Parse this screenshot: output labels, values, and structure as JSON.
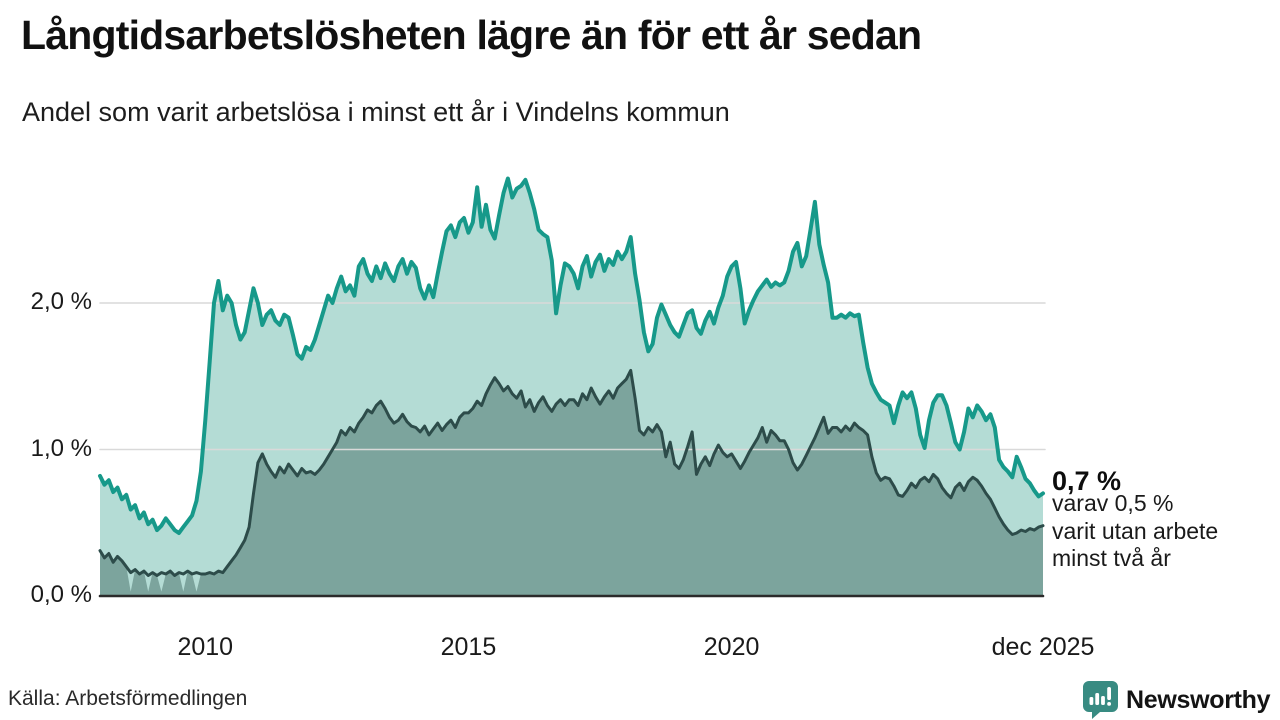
{
  "header": {
    "title": "Långtidsarbetslösheten lägre än för ett år sedan",
    "subtitle": "Andel som varit arbetslösa i minst ett år i Vindelns kommun"
  },
  "annotation": {
    "headline": "0,7 %",
    "line1": "varav 0,5 %",
    "line2": "varit utan arbete",
    "line3": "minst två år"
  },
  "footer": {
    "source": "Källa: Arbetsförmedlingen",
    "logo_text": "Newsworthy"
  },
  "colors": {
    "teal_line": "#17998a",
    "teal_fill": "#b4dcd5",
    "dark_line": "#2d4c4a",
    "dark_fill": "#7ca49d",
    "grid": "#d9d9d9",
    "axis": "#2b2b2b",
    "logo_teal": "#388b82",
    "text": "#1a1a1a"
  },
  "chart_data": {
    "type": "area",
    "title": "Andel som varit arbetslösa i minst ett år i Vindelns kommun",
    "x_start": "2008-01",
    "x_end": "2025-12",
    "x_unit": "month",
    "ylim": [
      0,
      2.95
    ],
    "grid": true,
    "legend": "none (annotated at line end)",
    "y_ticks": [
      {
        "label": "2,0 %",
        "value": 2.0
      },
      {
        "label": "1,0 %",
        "value": 1.0
      },
      {
        "label": "0,0 %",
        "value": 0.0
      }
    ],
    "x_ticks": [
      {
        "label": "2010",
        "month_index": 24
      },
      {
        "label": "2015",
        "month_index": 84
      },
      {
        "label": "2020",
        "month_index": 144
      },
      {
        "label": "dec 2025",
        "month_index": 215
      }
    ],
    "series": [
      {
        "name": "arbetslösa minst ett år",
        "end_label": "0,7 %",
        "color": "#17998a",
        "fill": "#b4dcd5",
        "stroke_width": 4,
        "values": [
          0.82,
          0.76,
          0.79,
          0.71,
          0.74,
          0.66,
          0.69,
          0.59,
          0.62,
          0.53,
          0.57,
          0.49,
          0.52,
          0.45,
          0.48,
          0.53,
          0.49,
          0.45,
          0.43,
          0.47,
          0.51,
          0.55,
          0.65,
          0.85,
          1.2,
          1.6,
          2.0,
          2.15,
          1.95,
          2.05,
          2.0,
          1.85,
          1.75,
          1.8,
          1.95,
          2.1,
          2.0,
          1.85,
          1.92,
          1.95,
          1.88,
          1.85,
          1.92,
          1.9,
          1.78,
          1.65,
          1.62,
          1.7,
          1.68,
          1.75,
          1.85,
          1.95,
          2.05,
          2.0,
          2.1,
          2.18,
          2.08,
          2.12,
          2.05,
          2.25,
          2.3,
          2.2,
          2.15,
          2.25,
          2.17,
          2.27,
          2.2,
          2.15,
          2.25,
          2.3,
          2.2,
          2.28,
          2.24,
          2.1,
          2.03,
          2.12,
          2.04,
          2.2,
          2.35,
          2.49,
          2.53,
          2.45,
          2.55,
          2.58,
          2.48,
          2.55,
          2.79,
          2.52,
          2.67,
          2.5,
          2.44,
          2.6,
          2.75,
          2.85,
          2.72,
          2.78,
          2.8,
          2.84,
          2.75,
          2.64,
          2.5,
          2.47,
          2.45,
          2.29,
          1.93,
          2.12,
          2.27,
          2.25,
          2.2,
          2.1,
          2.25,
          2.32,
          2.18,
          2.28,
          2.33,
          2.22,
          2.3,
          2.26,
          2.35,
          2.3,
          2.35,
          2.45,
          2.2,
          2.02,
          1.8,
          1.67,
          1.72,
          1.9,
          1.99,
          1.92,
          1.85,
          1.8,
          1.77,
          1.85,
          1.93,
          1.95,
          1.83,
          1.79,
          1.88,
          1.94,
          1.86,
          1.97,
          2.05,
          2.18,
          2.25,
          2.28,
          2.1,
          1.86,
          1.95,
          2.02,
          2.08,
          2.12,
          2.16,
          2.11,
          2.14,
          2.12,
          2.14,
          2.22,
          2.35,
          2.41,
          2.25,
          2.32,
          2.5,
          2.69,
          2.4,
          2.26,
          2.14,
          1.9,
          1.9,
          1.92,
          1.9,
          1.93,
          1.91,
          1.92,
          1.73,
          1.56,
          1.45,
          1.39,
          1.34,
          1.32,
          1.3,
          1.18,
          1.3,
          1.39,
          1.35,
          1.39,
          1.28,
          1.1,
          1.01,
          1.2,
          1.32,
          1.37,
          1.37,
          1.3,
          1.18,
          1.05,
          1.0,
          1.12,
          1.28,
          1.22,
          1.3,
          1.26,
          1.2,
          1.24,
          1.15,
          0.93,
          0.88,
          0.85,
          0.81,
          0.95,
          0.88,
          0.8,
          0.77,
          0.72,
          0.68,
          0.7
        ]
      },
      {
        "name": "varav utan arbete minst två år",
        "end_label": "0,5 %",
        "color": "#2d4c4a",
        "fill": "#7ca49d",
        "stroke_width": 3,
        "fill_dips": [
          {
            "index": 7,
            "value": 0.03
          },
          {
            "index": 11,
            "value": 0.03
          },
          {
            "index": 14,
            "value": 0.03
          },
          {
            "index": 19,
            "value": 0.03
          },
          {
            "index": 22,
            "value": 0.03
          }
        ],
        "values": [
          0.31,
          0.26,
          0.29,
          0.23,
          0.27,
          0.24,
          0.2,
          0.16,
          0.18,
          0.15,
          0.17,
          0.14,
          0.16,
          0.14,
          0.16,
          0.15,
          0.17,
          0.14,
          0.16,
          0.15,
          0.17,
          0.15,
          0.16,
          0.15,
          0.15,
          0.16,
          0.15,
          0.17,
          0.16,
          0.2,
          0.24,
          0.28,
          0.33,
          0.38,
          0.47,
          0.7,
          0.91,
          0.97,
          0.9,
          0.85,
          0.81,
          0.88,
          0.84,
          0.9,
          0.86,
          0.82,
          0.87,
          0.84,
          0.85,
          0.83,
          0.86,
          0.9,
          0.95,
          1.0,
          1.05,
          1.13,
          1.1,
          1.15,
          1.12,
          1.18,
          1.22,
          1.27,
          1.25,
          1.3,
          1.33,
          1.28,
          1.22,
          1.18,
          1.2,
          1.24,
          1.19,
          1.16,
          1.15,
          1.12,
          1.16,
          1.1,
          1.14,
          1.18,
          1.13,
          1.17,
          1.2,
          1.15,
          1.22,
          1.25,
          1.25,
          1.28,
          1.33,
          1.3,
          1.38,
          1.44,
          1.49,
          1.45,
          1.4,
          1.43,
          1.38,
          1.35,
          1.4,
          1.29,
          1.34,
          1.26,
          1.32,
          1.36,
          1.3,
          1.26,
          1.31,
          1.34,
          1.3,
          1.34,
          1.34,
          1.3,
          1.38,
          1.34,
          1.42,
          1.36,
          1.31,
          1.36,
          1.4,
          1.35,
          1.42,
          1.45,
          1.48,
          1.54,
          1.35,
          1.13,
          1.1,
          1.15,
          1.12,
          1.17,
          1.12,
          0.95,
          1.05,
          0.9,
          0.87,
          0.93,
          1.02,
          1.12,
          0.83,
          0.9,
          0.95,
          0.89,
          0.97,
          1.03,
          0.98,
          0.95,
          0.97,
          0.92,
          0.87,
          0.92,
          0.98,
          1.03,
          1.08,
          1.15,
          1.05,
          1.13,
          1.1,
          1.06,
          1.06,
          1.0,
          0.91,
          0.86,
          0.9,
          0.96,
          1.02,
          1.08,
          1.15,
          1.22,
          1.11,
          1.15,
          1.15,
          1.12,
          1.16,
          1.13,
          1.18,
          1.15,
          1.13,
          1.1,
          0.95,
          0.84,
          0.79,
          0.81,
          0.8,
          0.75,
          0.69,
          0.68,
          0.72,
          0.77,
          0.74,
          0.79,
          0.81,
          0.78,
          0.83,
          0.8,
          0.74,
          0.7,
          0.67,
          0.74,
          0.77,
          0.72,
          0.78,
          0.81,
          0.79,
          0.75,
          0.7,
          0.66,
          0.6,
          0.54,
          0.49,
          0.45,
          0.42,
          0.43,
          0.45,
          0.44,
          0.46,
          0.45,
          0.47,
          0.48
        ]
      }
    ]
  }
}
